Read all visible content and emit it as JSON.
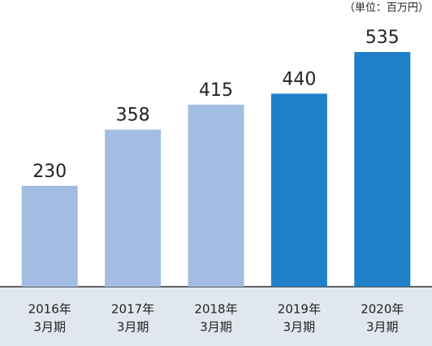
{
  "chart_data": {
    "type": "bar",
    "unit": "（単位：百万円）",
    "categories": [
      [
        "2016年",
        "3月期"
      ],
      [
        "2017年",
        "3月期"
      ],
      [
        "2018年",
        "3月期"
      ],
      [
        "2019年",
        "3月期"
      ],
      [
        "2020年",
        "3月期"
      ]
    ],
    "values": [
      230,
      358,
      415,
      440,
      535
    ],
    "colors": [
      "#a3bde2",
      "#a3bde2",
      "#a3bde2",
      "#1f7fc8",
      "#1f7fc8"
    ]
  }
}
